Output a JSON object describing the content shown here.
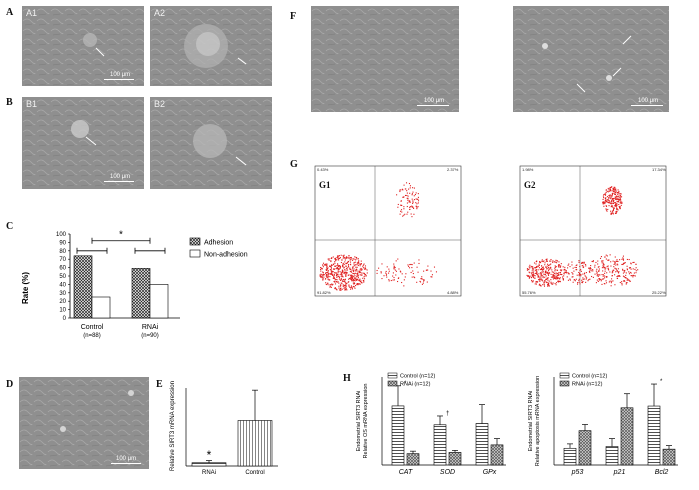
{
  "panels": {
    "A": {
      "label": "A",
      "sub1": "A1",
      "sub2": "A2",
      "scale": "100 μm"
    },
    "B": {
      "label": "B",
      "sub1": "B1",
      "sub2": "B2",
      "scale": "100 μm"
    },
    "C": {
      "label": "C"
    },
    "D": {
      "label": "D",
      "scale": "100 μm"
    },
    "E": {
      "label": "E"
    },
    "F": {
      "label": "F",
      "scale": "100 μm"
    },
    "G": {
      "label": "G",
      "sub1": "G1",
      "sub2": "G2",
      "g1_quadrants": [
        "0.43%",
        "2.37%",
        "91.82%",
        "4.88%"
      ],
      "g2_quadrants": [
        "1.98%",
        "17.34%",
        "55.76%",
        "25.22%"
      ]
    },
    "H": {
      "label": "H"
    }
  },
  "colors": {
    "micrograph": "#8f8f8f",
    "flow_dots": "#e02020",
    "ink": "#111111"
  },
  "chart_data": [
    {
      "id": "C",
      "type": "bar",
      "ylabel": "Rate (%)",
      "ylim": [
        0,
        100
      ],
      "yticks": [
        "0",
        "10",
        "20",
        "30",
        "40",
        "50",
        "60",
        "70",
        "80",
        "90",
        "100"
      ],
      "categories": [
        "Control",
        "RNAi"
      ],
      "category_sub": [
        "(n=88)",
        "(n=90)"
      ],
      "series": [
        {
          "name": "Adhesion",
          "values": [
            74,
            59
          ]
        },
        {
          "name": "Non-adhesion",
          "values": [
            25,
            40
          ]
        }
      ],
      "annotation": "*",
      "legend": "right"
    },
    {
      "id": "E",
      "type": "bar",
      "ylabel": "Relative SIRT3 mRNA expression",
      "categories": [
        "RNAi",
        "Control"
      ],
      "values": [
        0.15,
        2.1
      ],
      "errors": [
        0.1,
        1.4
      ],
      "ylim": [
        0,
        3.6
      ],
      "annotation": "*"
    },
    {
      "id": "H1",
      "type": "bar",
      "ylabel": "Endometrial SIRT3 RNAi Relative OS mRNA expression",
      "categories": [
        "CAT",
        "SOD",
        "GPx"
      ],
      "series": [
        {
          "name": "Control (n=12)",
          "values": [
            2.35,
            1.6,
            1.65
          ]
        },
        {
          "name": "RNAi (n=12)",
          "values": [
            0.45,
            0.5,
            0.8
          ]
        }
      ],
      "errors": [
        [
          0.8,
          0.35,
          0.75
        ],
        [
          0.1,
          0.08,
          0.25
        ]
      ],
      "annotations": [
        "*",
        "†",
        ""
      ],
      "ylim": [
        0,
        3.5
      ],
      "legend": "top-left"
    },
    {
      "id": "H2",
      "type": "bar",
      "ylabel": "Endometrial SIRT3 RNAi Relative apoptosis mRNA expression",
      "categories": [
        "p53",
        "p21",
        "Bcl2"
      ],
      "series": [
        {
          "name": "Control (n=12)",
          "values": [
            0.95,
            1.05,
            3.35
          ]
        },
        {
          "name": "RNAi (n=12)",
          "values": [
            1.95,
            3.25,
            0.9
          ]
        }
      ],
      "errors": [
        [
          0.25,
          0.45,
          1.25
        ],
        [
          0.35,
          0.8,
          0.2
        ]
      ],
      "annotations": [
        "",
        "",
        "*"
      ],
      "ylim": [
        0,
        5
      ],
      "legend": "top-left"
    }
  ]
}
